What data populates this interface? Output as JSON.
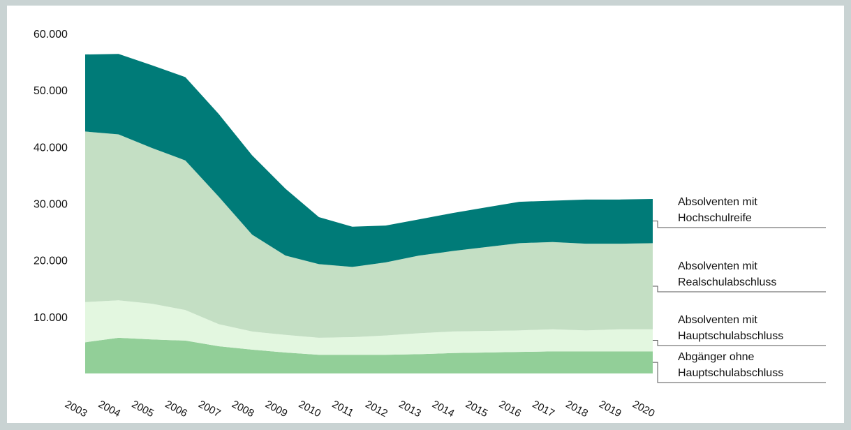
{
  "chart_data": {
    "type": "stacked_area",
    "categories": [
      "2003",
      "2004",
      "2005",
      "2006",
      "2007",
      "2008",
      "2009",
      "2010",
      "2011",
      "2012",
      "2013",
      "2014",
      "2015",
      "2016",
      "2017",
      "2018",
      "2019",
      "2020"
    ],
    "series": [
      {
        "name": "Abgänger ohne Hauptschulabschluss",
        "color": "#92cf98",
        "values": [
          5500,
          6300,
          6000,
          5800,
          4800,
          4200,
          3700,
          3300,
          3300,
          3300,
          3400,
          3600,
          3700,
          3800,
          3900,
          3900,
          3900,
          3900
        ]
      },
      {
        "name": "Absolventen mit Hauptschulabschluss",
        "color": "#e3f7e0",
        "values": [
          7100,
          6600,
          6300,
          5400,
          3900,
          3200,
          3100,
          3000,
          3100,
          3400,
          3700,
          3800,
          3800,
          3800,
          3900,
          3700,
          3900,
          3900
        ]
      },
      {
        "name": "Absolventen mit Realschulabschluss",
        "color": "#c4dfc4",
        "values": [
          30100,
          29300,
          27500,
          26400,
          22500,
          17100,
          14000,
          13000,
          12400,
          12900,
          13700,
          14200,
          14800,
          15400,
          15400,
          15300,
          15100,
          15200
        ]
      },
      {
        "name": "Absolventen mit Hochschulreife",
        "color": "#007b78",
        "values": [
          13600,
          14200,
          14600,
          14700,
          14600,
          14000,
          11800,
          8300,
          7100,
          6500,
          6400,
          6700,
          7000,
          7300,
          7300,
          7800,
          7800,
          7800
        ]
      }
    ],
    "ylim": [
      0,
      60000
    ],
    "yticks": [
      {
        "value": 10000,
        "label": "10.000"
      },
      {
        "value": 20000,
        "label": "20.000"
      },
      {
        "value": 30000,
        "label": "30.000"
      },
      {
        "value": 40000,
        "label": "40.000"
      },
      {
        "value": 50000,
        "label": "50.000"
      },
      {
        "value": 60000,
        "label": "60.000"
      }
    ]
  }
}
